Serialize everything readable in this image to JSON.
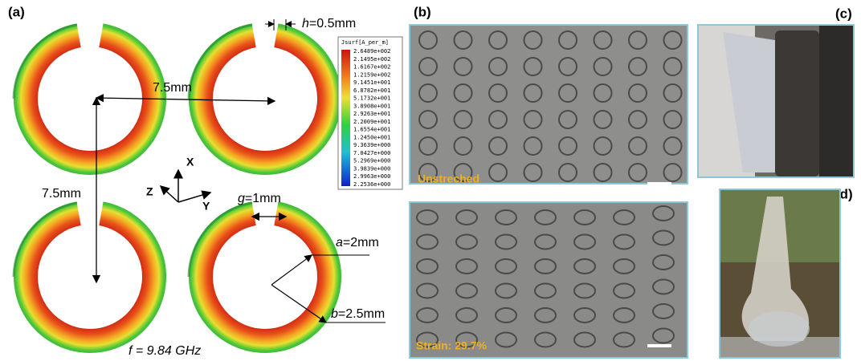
{
  "panel_labels": [
    "(a)",
    "(b)",
    "(c)",
    "(d)"
  ],
  "panel_a": {
    "h_label": {
      "symbol": "h",
      "text": "=0.5mm"
    },
    "period_x": "7.5mm",
    "period_y": "7.5mm",
    "g_label": {
      "symbol": "g",
      "text": "=1mm"
    },
    "a_label": {
      "symbol": "a",
      "text": "=2mm"
    },
    "b_label": {
      "symbol": "b",
      "text": "=2.5mm"
    },
    "frequency": "f = 9.84 GHz",
    "axes": {
      "x": "X",
      "y": "Y",
      "z": "Z"
    },
    "legend": {
      "title": "Jsurf[A_per_m]",
      "values": [
        "2.6489e+002",
        "2.1495e+002",
        "1.6167e+002",
        "1.2159e+002",
        "9.1451e+001",
        "6.8782e+001",
        "5.1732e+001",
        "3.8908e+001",
        "2.9263e+001",
        "2.2009e+001",
        "1.6554e+001",
        "1.2450e+001",
        "9.3639e+000",
        "7.0427e+000",
        "5.2969e+000",
        "3.9839e+000",
        "2.9963e+000",
        "2.2536e+000"
      ]
    }
  },
  "panel_b": {
    "top_caption": "Unstreched",
    "bottom_caption": "Strain: 29.7%"
  }
}
